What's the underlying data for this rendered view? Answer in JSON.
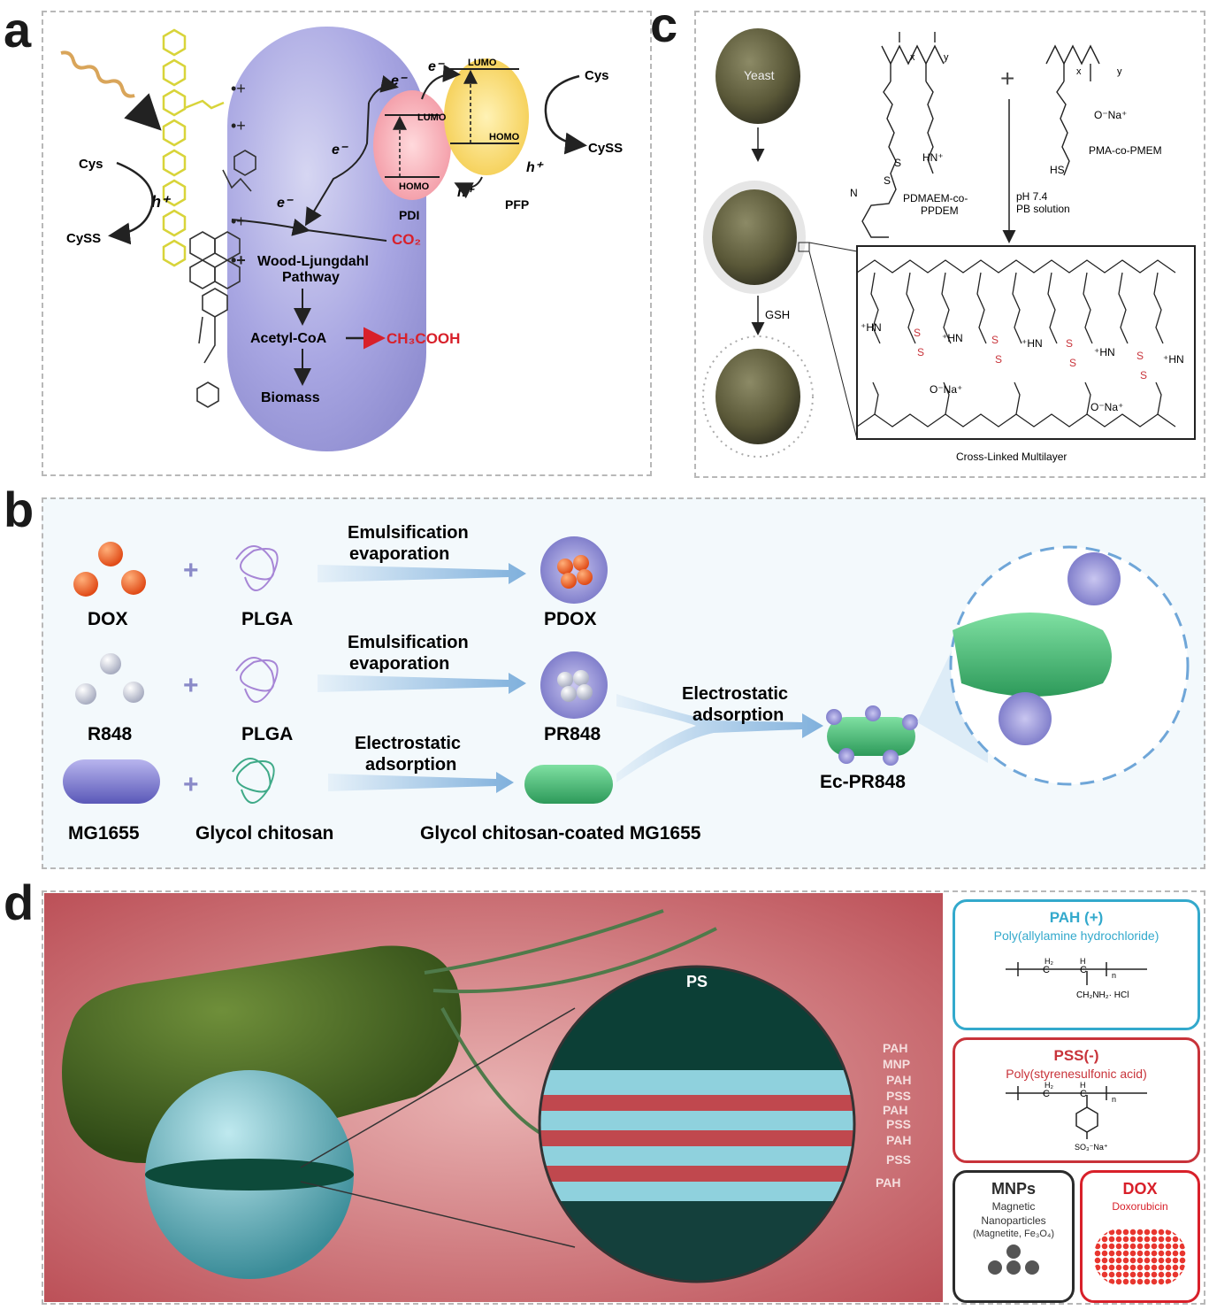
{
  "panels": {
    "a": "a",
    "b": "b",
    "c": "c",
    "d": "d"
  },
  "panel_a": {
    "cys_left": "Cys",
    "cyss_left": "CySS",
    "h_left": "h⁺",
    "e1": "e⁻",
    "e2": "e⁻",
    "e3": "e⁻",
    "e4": "e⁻",
    "e5": "e⁻",
    "lumo_pdi": "LUMO",
    "homo_pdi": "HOMO",
    "lumo_pfp": "LUMO",
    "homo_pfp": "HOMO",
    "pdi": "PDI",
    "pfp": "PFP",
    "h_mid": "h⁺",
    "h_right": "h⁺",
    "cys_right": "Cys",
    "cyss_right": "CySS",
    "co2": "CO₂",
    "wood": "Wood-Ljungdahl",
    "pathway": "Pathway",
    "acetyl": "Acetyl-CoA",
    "ch3cooh": "CH₃COOH",
    "biomass": "Biomass",
    "plus": "+",
    "dot_plus": "•+",
    "dot_plus_wood": "•+"
  },
  "panel_c": {
    "yeast": "Yeast",
    "gsh": "GSH",
    "pdmaem": "PDMAEM-co-",
    "ppdem": "PPDEM",
    "pma": "PMA-co-PMEM",
    "ph": "pH 7.4",
    "pb": "PB solution",
    "plus": "+",
    "x1": "x",
    "y1": "y",
    "x2": "x",
    "y2": "y",
    "o_na": "O⁻Na⁺",
    "hs": "HS",
    "hn": "HN⁺",
    "n": "N",
    "s": "S",
    "inset_hn": "⁺HN",
    "inset_ona": "O⁻Na⁺",
    "caption": "Cross-Linked Multilayer"
  },
  "panel_b": {
    "row1": {
      "left": "DOX",
      "mid": "PLGA",
      "arrow1": "Emulsification",
      "arrow2": "evaporation",
      "right": "PDOX"
    },
    "row2": {
      "left": "R848",
      "mid": "PLGA",
      "arrow1": "Emulsification",
      "arrow2": "evaporation",
      "right": "PR848"
    },
    "row3": {
      "left": "MG1655",
      "mid": "Glycol chitosan",
      "arrow1": "Electrostatic",
      "arrow2": "adsorption",
      "right": "Glycol chitosan-coated MG1655"
    },
    "merge1": "Electrostatic",
    "merge2": "adsorption",
    "final": "Ec-PR848",
    "plus": "+"
  },
  "panel_d": {
    "ps": "PS",
    "layers": [
      "PAH",
      "MNP",
      "PAH",
      "PSS",
      "PAH",
      "PSS",
      "PAH",
      "PSS",
      "PAH"
    ],
    "pah": {
      "title": "PAH (+)",
      "sub": "Poly(allylamine hydrochloride)",
      "group": "CH₂NH₂· HCl"
    },
    "pss": {
      "title": "PSS(-)",
      "sub": "Poly(styrenesulfonic acid)",
      "group": "SO₃⁻Na⁺"
    },
    "mnp": {
      "title": "MNPs",
      "sub1": "Magnetic",
      "sub2": "Nanoparticles",
      "sub3": "(Magnetite, Fe₃O₄)"
    },
    "dox": {
      "title": "DOX",
      "sub": "Doxorubicin"
    },
    "h2": "H₂",
    "h": "H",
    "c": "C",
    "n": "n"
  },
  "colors": {
    "red": "#d8202a",
    "blue": "#33a9cc",
    "pss_red": "#c8333a",
    "dark": "#2b2b2b",
    "bacterium_purple": "#a7a6e0",
    "arrow_blue": "#8fb8e0",
    "green": "#3faa66"
  }
}
